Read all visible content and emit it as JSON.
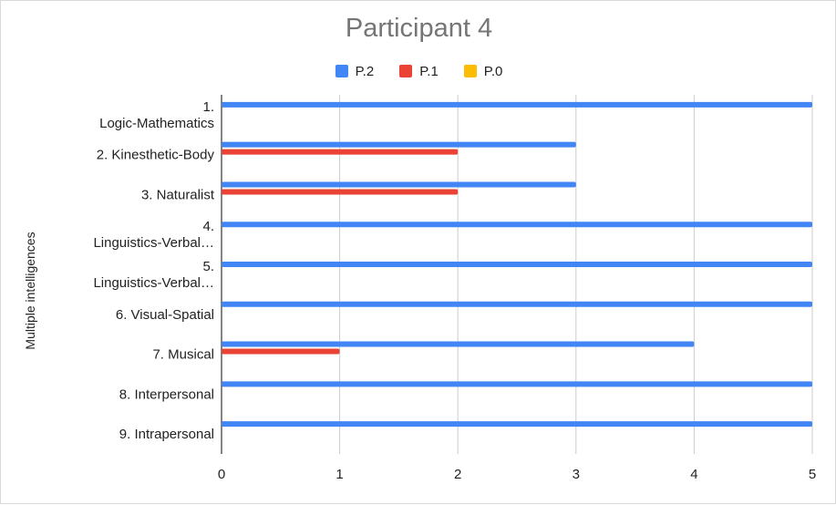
{
  "chart_data": {
    "type": "bar",
    "orientation": "horizontal",
    "title": "Participant 4",
    "ylabel": "Multiple intelligences",
    "xlabel": "",
    "xlim": [
      0,
      5
    ],
    "xticks": [
      "0",
      "1",
      "2",
      "3",
      "4",
      "5"
    ],
    "grid": true,
    "legend_position": "top",
    "categories": [
      [
        "1.",
        "Logic-Mathematics"
      ],
      [
        "2. Kinesthetic-Body"
      ],
      [
        "3. Naturalist"
      ],
      [
        "4.",
        "Linguistics-Verbal…"
      ],
      [
        "5.",
        "Linguistics-Verbal…"
      ],
      [
        "6. Visual-Spatial"
      ],
      [
        "7. Musical"
      ],
      [
        "8. Interpersonal"
      ],
      [
        "9. Intrapersonal"
      ]
    ],
    "series": [
      {
        "name": "P.2",
        "color": "#4285f4",
        "values": [
          5,
          3,
          3,
          5,
          5,
          5,
          4,
          5,
          5
        ]
      },
      {
        "name": "P.1",
        "color": "#ea4335",
        "values": [
          0,
          2,
          2,
          0,
          0,
          0,
          1,
          0,
          0
        ]
      },
      {
        "name": "P.0",
        "color": "#fbbc04",
        "values": [
          0,
          0,
          0,
          0,
          0,
          0,
          0,
          0,
          0
        ]
      }
    ]
  }
}
